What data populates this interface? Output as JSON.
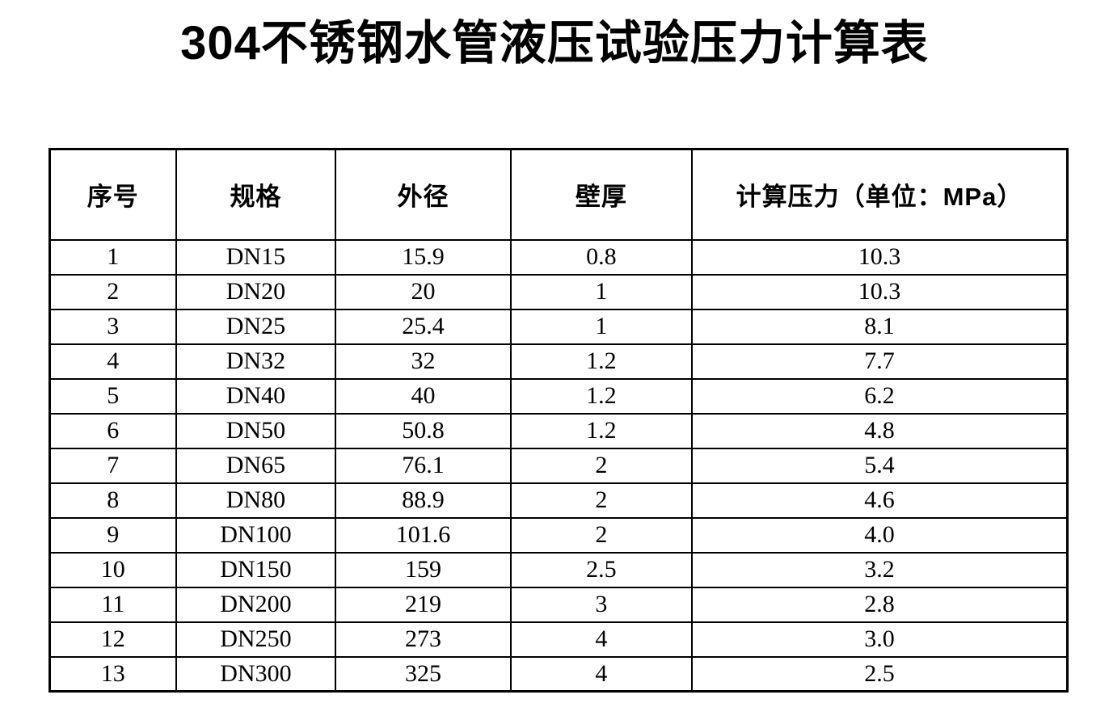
{
  "page": {
    "title": "304不锈钢水管液压试验压力计算表"
  },
  "table": {
    "headers": [
      "序号",
      "规格",
      "外径",
      "壁厚",
      "计算压力（单位：MPa）"
    ],
    "rows": [
      [
        "1",
        "DN15",
        "15.9",
        "0.8",
        "10.3"
      ],
      [
        "2",
        "DN20",
        "20",
        "1",
        "10.3"
      ],
      [
        "3",
        "DN25",
        "25.4",
        "1",
        "8.1"
      ],
      [
        "4",
        "DN32",
        "32",
        "1.2",
        "7.7"
      ],
      [
        "5",
        "DN40",
        "40",
        "1.2",
        "6.2"
      ],
      [
        "6",
        "DN50",
        "50.8",
        "1.2",
        "4.8"
      ],
      [
        "7",
        "DN65",
        "76.1",
        "2",
        "5.4"
      ],
      [
        "8",
        "DN80",
        "88.9",
        "2",
        "4.6"
      ],
      [
        "9",
        "DN100",
        "101.6",
        "2",
        "4.0"
      ],
      [
        "10",
        "DN150",
        "159",
        "2.5",
        "3.2"
      ],
      [
        "11",
        "DN200",
        "219",
        "3",
        "2.8"
      ],
      [
        "12",
        "DN250",
        "273",
        "4",
        "3.0"
      ],
      [
        "13",
        "DN300",
        "325",
        "4",
        "2.5"
      ]
    ]
  }
}
